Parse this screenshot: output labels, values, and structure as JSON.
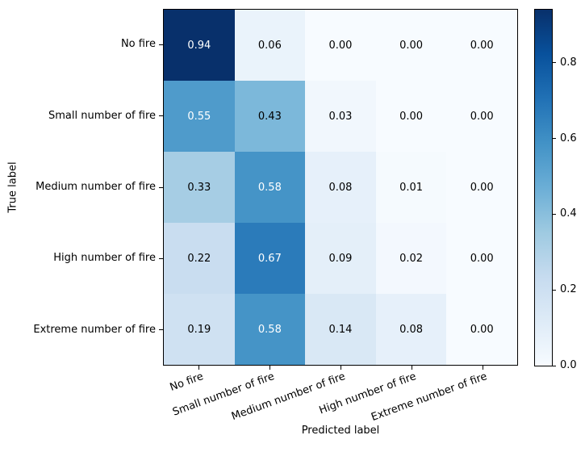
{
  "chart_data": {
    "type": "heatmap",
    "title": "",
    "xlabel": "Predicted label",
    "ylabel": "True label",
    "categories": [
      "No fire",
      "Small number of fire",
      "Medium number of fire",
      "High number of fire",
      "Extreme number of fire"
    ],
    "rows": [
      [
        0.94,
        0.06,
        0.0,
        0.0,
        0.0
      ],
      [
        0.55,
        0.43,
        0.03,
        0.0,
        0.0
      ],
      [
        0.33,
        0.58,
        0.08,
        0.01,
        0.0
      ],
      [
        0.22,
        0.67,
        0.09,
        0.02,
        0.0
      ],
      [
        0.19,
        0.58,
        0.14,
        0.08,
        0.0
      ]
    ],
    "value_decimals": 2,
    "vmin": 0.0,
    "vmax": 0.94,
    "colormap": {
      "name": "Blues",
      "stops": [
        "#f7fbff",
        "#deebf7",
        "#c6dbef",
        "#9ecae1",
        "#6baed6",
        "#4292c6",
        "#2171b5",
        "#08519c",
        "#08306b"
      ]
    },
    "cell_text_color_light": "#ffffff",
    "cell_text_color_dark": "#000000",
    "colorbar_ticks": [
      {
        "value": 0.0,
        "label": "0.0"
      },
      {
        "value": 0.2,
        "label": "0.2"
      },
      {
        "value": 0.4,
        "label": "0.4"
      },
      {
        "value": 0.6,
        "label": "0.6"
      },
      {
        "value": 0.8,
        "label": "0.8"
      }
    ],
    "legend": null,
    "grid": false
  }
}
